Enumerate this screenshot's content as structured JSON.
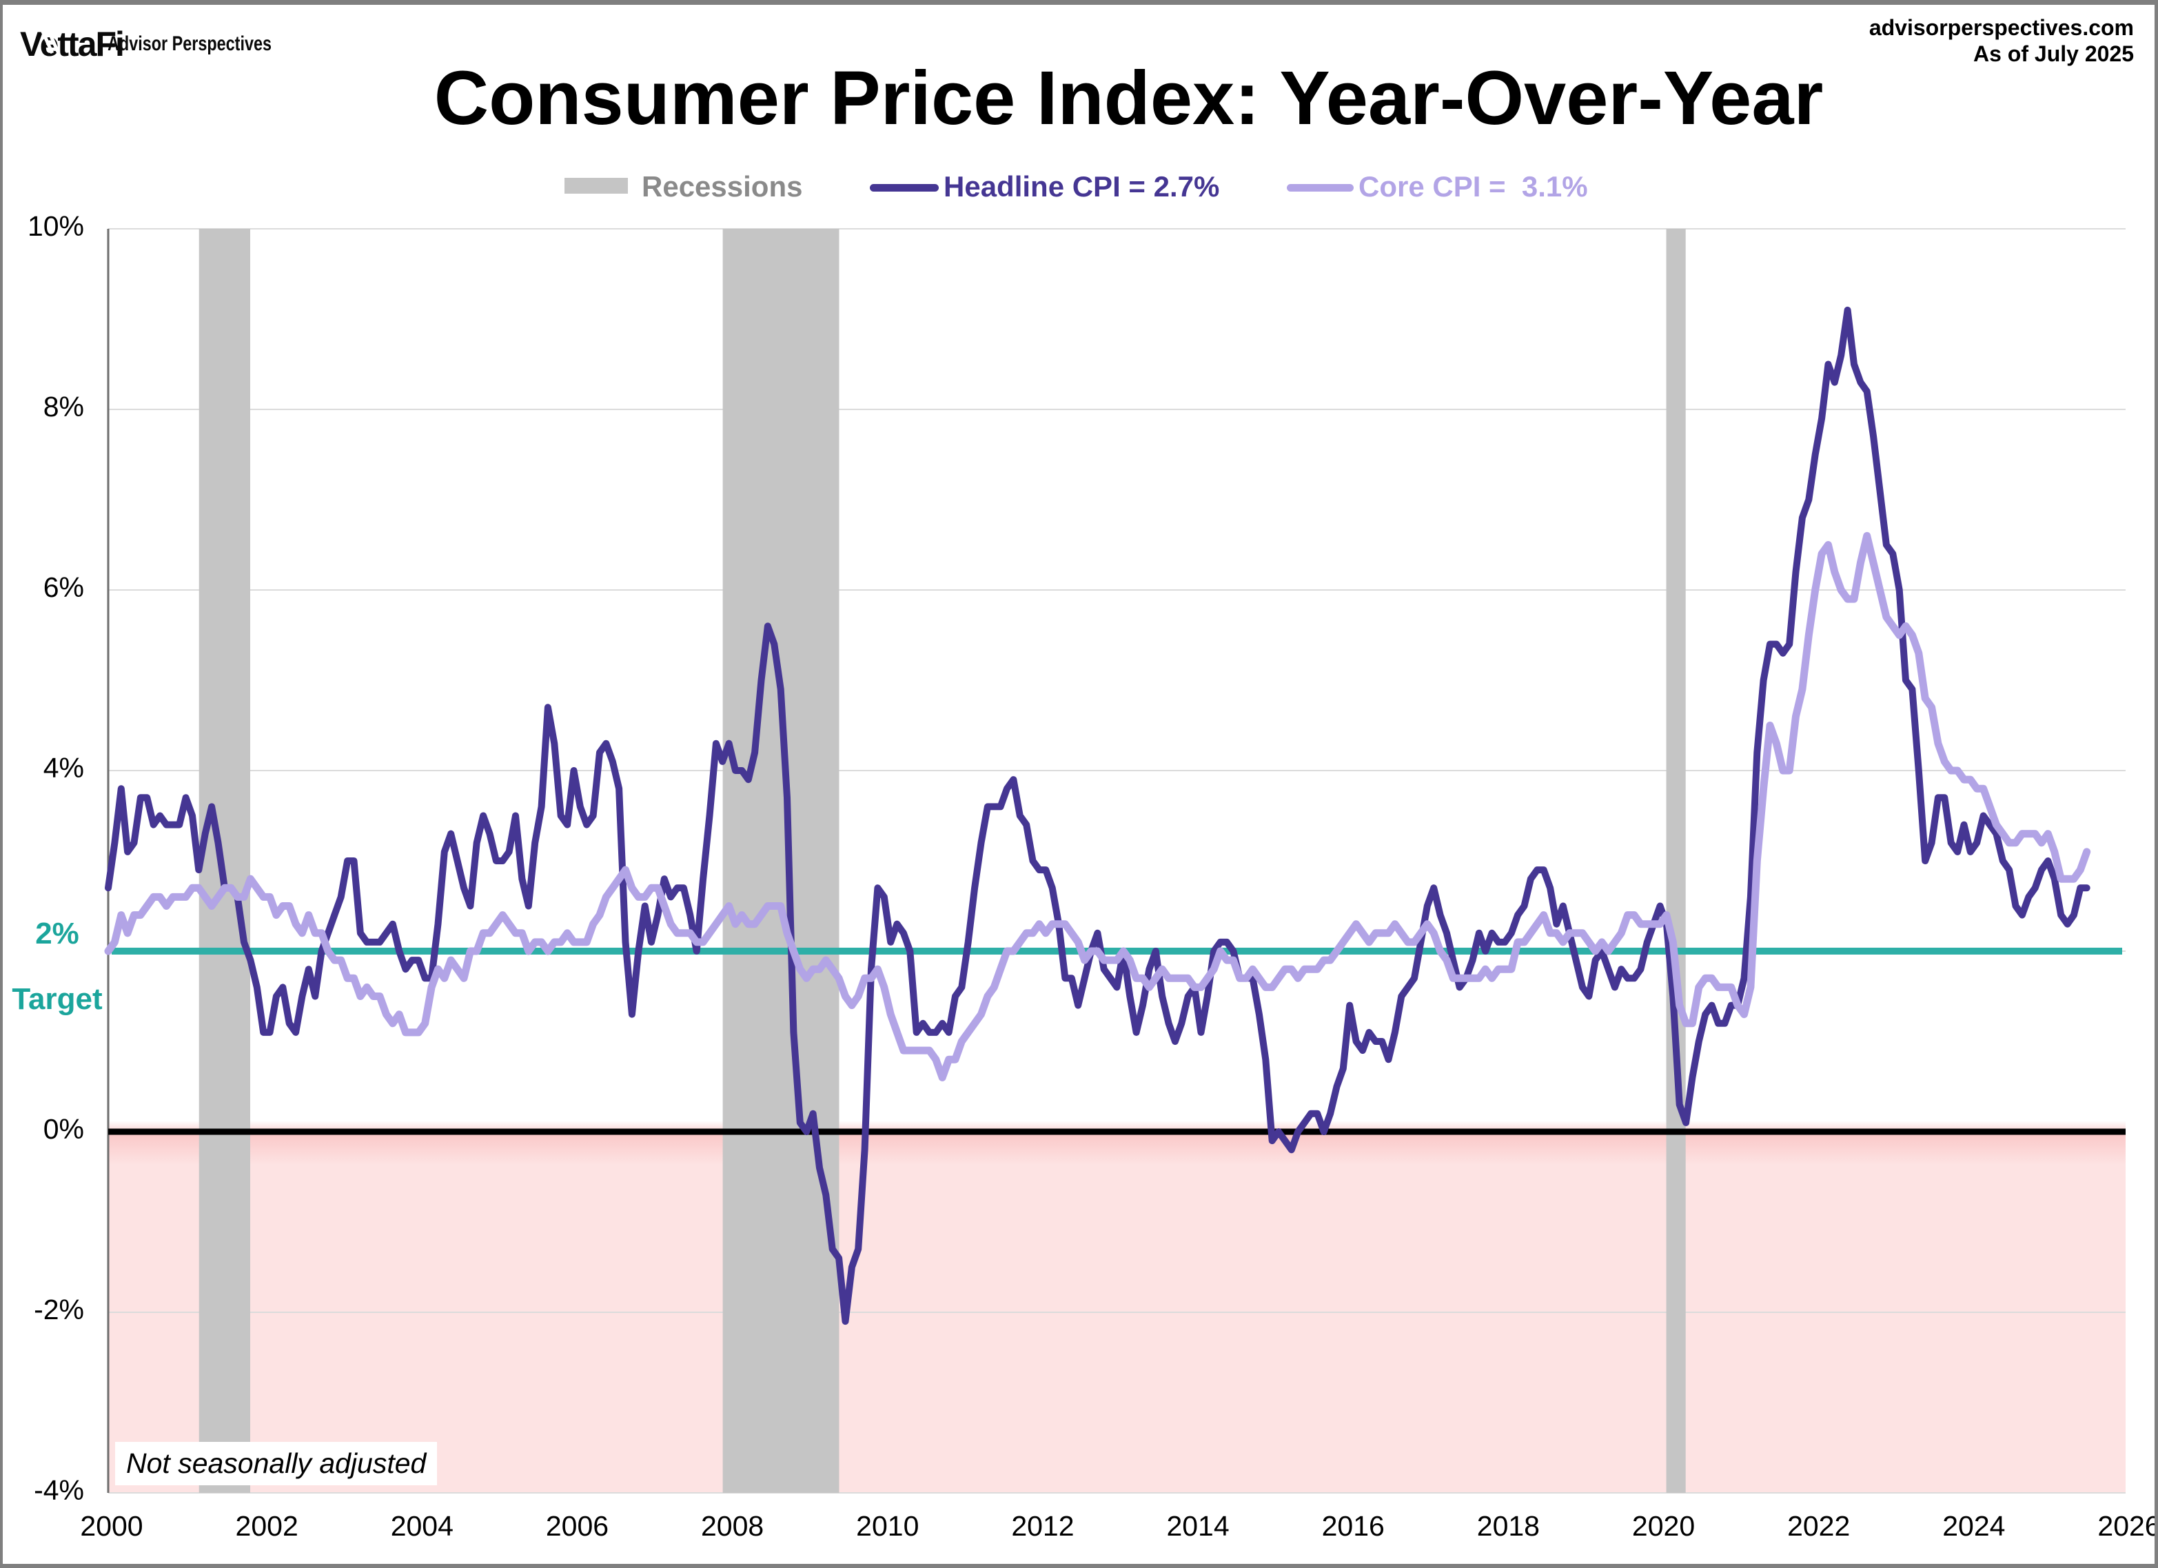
{
  "header": {
    "logo_text": "VettaFi",
    "logo_v": "V",
    "logo_rest": "ettaFi",
    "logo_sub": "Advisor Perspectives",
    "source_line1": "advisorperspectives.com",
    "source_line2": "As of July 2025",
    "title": "Consumer Price Index: Year-Over-Year"
  },
  "legend": {
    "recessions_label": "Recessions",
    "recessions_text_color": "#8a8a8a",
    "recessions_swatch_color": "#c5c5c5",
    "headline_label": "Headline CPI = 2.7%",
    "headline_color": "#453693",
    "core_label": "Core CPI =  3.1%",
    "core_color": "#b2a4e6"
  },
  "target_label": {
    "line1": "2%",
    "line2": "Target",
    "color": "#1ba59c"
  },
  "footnote": "Not seasonally adjusted",
  "chart_data": {
    "type": "line",
    "title": "Consumer Price Index: Year-Over-Year",
    "xlim": [
      2000,
      2026
    ],
    "ylim": [
      -4,
      10
    ],
    "x_start_year": 2000,
    "x_step_months": 1,
    "yticks": [
      {
        "v": 10,
        "label": "10%"
      },
      {
        "v": 8,
        "label": "8%"
      },
      {
        "v": 6,
        "label": "6%"
      },
      {
        "v": 4,
        "label": "4%"
      },
      {
        "v": 2,
        "label": ""
      },
      {
        "v": 0,
        "label": "0%"
      },
      {
        "v": -2,
        "label": "-2%"
      },
      {
        "v": -4,
        "label": "-4%"
      }
    ],
    "xticks": [
      {
        "v": 2000,
        "label": "2000"
      },
      {
        "v": 2002,
        "label": "2002"
      },
      {
        "v": 2004,
        "label": "2004"
      },
      {
        "v": 2006,
        "label": "2006"
      },
      {
        "v": 2008,
        "label": "2008"
      },
      {
        "v": 2010,
        "label": "2010"
      },
      {
        "v": 2012,
        "label": "2012"
      },
      {
        "v": 2014,
        "label": "2014"
      },
      {
        "v": 2016,
        "label": "2016"
      },
      {
        "v": 2018,
        "label": "2018"
      },
      {
        "v": 2020,
        "label": "2020"
      },
      {
        "v": 2022,
        "label": "2022"
      },
      {
        "v": 2024,
        "label": "2024"
      },
      {
        "v": 2026,
        "label": "2026"
      }
    ],
    "target_value": 2,
    "zero_line": 0,
    "recessions": [
      {
        "start": 2001.17,
        "end": 2001.83
      },
      {
        "start": 2007.92,
        "end": 2009.42
      },
      {
        "start": 2020.08,
        "end": 2020.33
      }
    ],
    "colors": {
      "negative_fill": "#fde3e3",
      "recession": "#c5c5c5",
      "gridline": "#dbdbdb",
      "axis": "#6e6e6e",
      "target": "#2eafa7",
      "zero": "#000000"
    },
    "series": [
      {
        "name": "Headline CPI",
        "color": "#453693",
        "width": 10,
        "current": 2.7,
        "values": [
          2.7,
          3.2,
          3.8,
          3.1,
          3.2,
          3.7,
          3.7,
          3.4,
          3.5,
          3.4,
          3.4,
          3.4,
          3.7,
          3.5,
          2.9,
          3.3,
          3.6,
          3.2,
          2.7,
          2.7,
          2.6,
          2.1,
          1.9,
          1.6,
          1.1,
          1.1,
          1.5,
          1.6,
          1.2,
          1.1,
          1.5,
          1.8,
          1.5,
          2.0,
          2.2,
          2.4,
          2.6,
          3.0,
          3.0,
          2.2,
          2.1,
          2.1,
          2.1,
          2.2,
          2.3,
          2.0,
          1.8,
          1.9,
          1.9,
          1.7,
          1.7,
          2.3,
          3.1,
          3.3,
          3.0,
          2.7,
          2.5,
          3.2,
          3.5,
          3.3,
          3.0,
          3.0,
          3.1,
          3.5,
          2.8,
          2.5,
          3.2,
          3.6,
          4.7,
          4.3,
          3.5,
          3.4,
          4.0,
          3.6,
          3.4,
          3.5,
          4.2,
          4.3,
          4.1,
          3.8,
          2.1,
          1.3,
          2.0,
          2.5,
          2.1,
          2.4,
          2.8,
          2.6,
          2.7,
          2.7,
          2.4,
          2.0,
          2.8,
          3.5,
          4.3,
          4.1,
          4.3,
          4.0,
          4.0,
          3.9,
          4.2,
          5.0,
          5.6,
          5.4,
          4.9,
          3.7,
          1.1,
          0.1,
          0.0,
          0.2,
          -0.4,
          -0.7,
          -1.3,
          -1.4,
          -2.1,
          -1.5,
          -1.3,
          -0.2,
          1.8,
          2.7,
          2.6,
          2.1,
          2.3,
          2.2,
          2.0,
          1.1,
          1.2,
          1.1,
          1.1,
          1.2,
          1.1,
          1.5,
          1.6,
          2.1,
          2.7,
          3.2,
          3.6,
          3.6,
          3.6,
          3.8,
          3.9,
          3.5,
          3.4,
          3.0,
          2.9,
          2.9,
          2.7,
          2.3,
          1.7,
          1.7,
          1.4,
          1.7,
          2.0,
          2.2,
          1.8,
          1.7,
          1.6,
          2.0,
          1.5,
          1.1,
          1.4,
          1.8,
          2.0,
          1.5,
          1.2,
          1.0,
          1.2,
          1.5,
          1.6,
          1.1,
          1.5,
          2.0,
          2.1,
          2.1,
          2.0,
          1.7,
          1.7,
          1.7,
          1.3,
          0.8,
          -0.1,
          0.0,
          -0.1,
          -0.2,
          0.0,
          0.1,
          0.2,
          0.2,
          0.0,
          0.2,
          0.5,
          0.7,
          1.4,
          1.0,
          0.9,
          1.1,
          1.0,
          1.0,
          0.8,
          1.1,
          1.5,
          1.6,
          1.7,
          2.1,
          2.5,
          2.7,
          2.4,
          2.2,
          1.9,
          1.6,
          1.7,
          1.9,
          2.2,
          2.0,
          2.2,
          2.1,
          2.1,
          2.2,
          2.4,
          2.5,
          2.8,
          2.9,
          2.9,
          2.7,
          2.3,
          2.5,
          2.2,
          1.9,
          1.6,
          1.5,
          1.9,
          2.0,
          1.8,
          1.6,
          1.8,
          1.7,
          1.7,
          1.8,
          2.1,
          2.3,
          2.5,
          2.3,
          1.5,
          0.3,
          0.1,
          0.6,
          1.0,
          1.3,
          1.4,
          1.2,
          1.2,
          1.4,
          1.4,
          1.7,
          2.6,
          4.2,
          5.0,
          5.4,
          5.4,
          5.3,
          5.4,
          6.2,
          6.8,
          7.0,
          7.5,
          7.9,
          8.5,
          8.3,
          8.6,
          9.1,
          8.5,
          8.3,
          8.2,
          7.7,
          7.1,
          6.5,
          6.4,
          6.0,
          5.0,
          4.9,
          4.0,
          3.0,
          3.2,
          3.7,
          3.7,
          3.2,
          3.1,
          3.4,
          3.1,
          3.2,
          3.5,
          3.4,
          3.3,
          3.0,
          2.9,
          2.5,
          2.4,
          2.6,
          2.7,
          2.9,
          3.0,
          2.8,
          2.4,
          2.3,
          2.4,
          2.7,
          2.7
        ]
      },
      {
        "name": "Core CPI",
        "color": "#b2a4e6",
        "width": 11,
        "current": 3.1,
        "values": [
          2.0,
          2.1,
          2.4,
          2.2,
          2.4,
          2.4,
          2.5,
          2.6,
          2.6,
          2.5,
          2.6,
          2.6,
          2.6,
          2.7,
          2.7,
          2.6,
          2.5,
          2.6,
          2.7,
          2.7,
          2.6,
          2.6,
          2.8,
          2.7,
          2.6,
          2.6,
          2.4,
          2.5,
          2.5,
          2.3,
          2.2,
          2.4,
          2.2,
          2.2,
          2.0,
          1.9,
          1.9,
          1.7,
          1.7,
          1.5,
          1.6,
          1.5,
          1.5,
          1.3,
          1.2,
          1.3,
          1.1,
          1.1,
          1.1,
          1.2,
          1.6,
          1.8,
          1.7,
          1.9,
          1.8,
          1.7,
          2.0,
          2.0,
          2.2,
          2.2,
          2.3,
          2.4,
          2.3,
          2.2,
          2.2,
          2.0,
          2.1,
          2.1,
          2.0,
          2.1,
          2.1,
          2.2,
          2.1,
          2.1,
          2.1,
          2.3,
          2.4,
          2.6,
          2.7,
          2.8,
          2.9,
          2.7,
          2.6,
          2.6,
          2.7,
          2.7,
          2.5,
          2.3,
          2.2,
          2.2,
          2.2,
          2.1,
          2.1,
          2.2,
          2.3,
          2.4,
          2.5,
          2.3,
          2.4,
          2.3,
          2.3,
          2.4,
          2.5,
          2.5,
          2.5,
          2.2,
          2.0,
          1.8,
          1.7,
          1.8,
          1.8,
          1.9,
          1.8,
          1.7,
          1.5,
          1.4,
          1.5,
          1.7,
          1.7,
          1.8,
          1.6,
          1.3,
          1.1,
          0.9,
          0.9,
          0.9,
          0.9,
          0.9,
          0.8,
          0.6,
          0.8,
          0.8,
          1.0,
          1.1,
          1.2,
          1.3,
          1.5,
          1.6,
          1.8,
          2.0,
          2.0,
          2.1,
          2.2,
          2.2,
          2.3,
          2.2,
          2.3,
          2.3,
          2.3,
          2.2,
          2.1,
          1.9,
          2.0,
          2.0,
          1.9,
          1.9,
          1.9,
          2.0,
          1.9,
          1.7,
          1.7,
          1.6,
          1.7,
          1.8,
          1.7,
          1.7,
          1.7,
          1.7,
          1.6,
          1.6,
          1.7,
          1.8,
          2.0,
          1.9,
          1.9,
          1.7,
          1.7,
          1.8,
          1.7,
          1.6,
          1.6,
          1.7,
          1.8,
          1.8,
          1.7,
          1.8,
          1.8,
          1.8,
          1.9,
          1.9,
          2.0,
          2.1,
          2.2,
          2.3,
          2.2,
          2.1,
          2.2,
          2.2,
          2.2,
          2.3,
          2.2,
          2.1,
          2.1,
          2.2,
          2.3,
          2.2,
          2.0,
          1.9,
          1.7,
          1.7,
          1.7,
          1.7,
          1.7,
          1.8,
          1.7,
          1.8,
          1.8,
          1.8,
          2.1,
          2.1,
          2.2,
          2.3,
          2.4,
          2.2,
          2.2,
          2.1,
          2.2,
          2.2,
          2.2,
          2.1,
          2.0,
          2.1,
          2.0,
          2.1,
          2.2,
          2.4,
          2.4,
          2.3,
          2.3,
          2.3,
          2.3,
          2.4,
          2.1,
          1.4,
          1.2,
          1.2,
          1.6,
          1.7,
          1.7,
          1.6,
          1.6,
          1.6,
          1.4,
          1.3,
          1.6,
          3.0,
          3.8,
          4.5,
          4.3,
          4.0,
          4.0,
          4.6,
          4.9,
          5.5,
          6.0,
          6.4,
          6.5,
          6.2,
          6.0,
          5.9,
          5.9,
          6.3,
          6.6,
          6.3,
          6.0,
          5.7,
          5.6,
          5.5,
          5.6,
          5.5,
          5.3,
          4.8,
          4.7,
          4.3,
          4.1,
          4.0,
          4.0,
          3.9,
          3.9,
          3.8,
          3.8,
          3.6,
          3.4,
          3.3,
          3.2,
          3.2,
          3.3,
          3.3,
          3.3,
          3.2,
          3.3,
          3.1,
          2.8,
          2.8,
          2.8,
          2.9,
          3.1
        ]
      }
    ]
  }
}
